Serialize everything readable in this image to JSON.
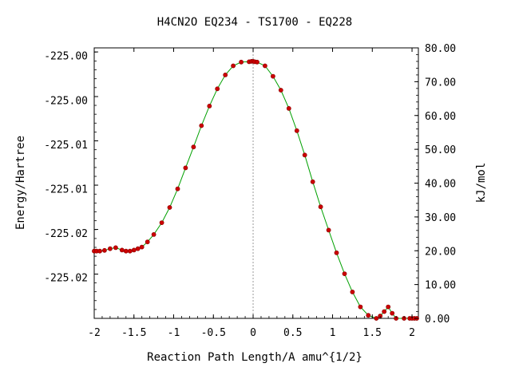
{
  "chart_data": {
    "type": "line",
    "title": "H4CN2O   EQ234 - TS1700 - EQ228",
    "xlabel": "Reaction Path Length/A amu^{1/2}",
    "ylabel_left": "Energy/Hartree",
    "ylabel_right": "kJ/mol",
    "xlim": [
      -2.0,
      2.08
    ],
    "ylim_kj": [
      0,
      80
    ],
    "x_ticks": [
      -2,
      -1.5,
      -1,
      -0.5,
      0,
      0.5,
      1,
      1.5,
      2
    ],
    "x_tick_labels": [
      "-2",
      "-1.5",
      "-1",
      "-0.5",
      "0",
      "0.5",
      "1",
      "1.5",
      "2"
    ],
    "left_tick_values_kj": [
      0.0,
      13.1,
      26.3,
      39.4,
      52.5,
      65.6,
      78.8
    ],
    "left_tick_labels": [
      "-225.02",
      "-225.02",
      "-225.01",
      "-225.01",
      "-225.00",
      "-225.00"
    ],
    "left_tick_values_label_kj": [
      12.1,
      25.2,
      38.4,
      51.5,
      64.6,
      77.7
    ],
    "right_ticks_kj": [
      0,
      10,
      20,
      30,
      40,
      50,
      60,
      70,
      80
    ],
    "right_tick_labels": [
      "0.00",
      "10.00",
      "20.00",
      "30.00",
      "40.00",
      "50.00",
      "60.00",
      "70.00",
      "80.00"
    ],
    "ts_x": 0,
    "line_color": "#00a000",
    "marker_color": "#cc0000",
    "series": [
      {
        "x": [
          -2.0,
          -1.97,
          -1.93,
          -1.87,
          -1.8,
          -1.73,
          -1.65,
          -1.6,
          -1.55,
          -1.5,
          -1.45,
          -1.4,
          -1.33,
          -1.25,
          -1.15,
          -1.05,
          -0.95,
          -0.85,
          -0.75,
          -0.65,
          -0.55,
          -0.45,
          -0.35,
          -0.25,
          -0.15,
          -0.05,
          -0.02,
          0.0,
          0.02,
          0.05,
          0.15,
          0.25,
          0.35,
          0.45,
          0.55,
          0.65,
          0.75,
          0.85,
          0.95,
          1.05,
          1.15,
          1.25,
          1.35,
          1.45,
          1.55,
          1.6,
          1.65,
          1.7,
          1.75,
          1.8,
          1.9,
          1.97,
          2.0,
          2.03,
          2.06
        ],
        "y": [
          19.9,
          19.9,
          19.9,
          20.1,
          20.6,
          20.9,
          20.2,
          19.9,
          19.9,
          20.2,
          20.6,
          21.1,
          22.6,
          24.8,
          28.3,
          32.8,
          38.3,
          44.5,
          50.7,
          57.0,
          62.8,
          67.9,
          72.0,
          74.7,
          75.8,
          75.9,
          76.0,
          76.0,
          75.9,
          75.8,
          74.7,
          71.6,
          67.5,
          62.1,
          55.5,
          48.3,
          40.4,
          33.0,
          26.1,
          19.4,
          13.2,
          7.8,
          3.4,
          0.9,
          0.0,
          0.7,
          2.0,
          3.4,
          1.5,
          0.0,
          0.0,
          0.0,
          0.0,
          0.0,
          0.0
        ]
      }
    ]
  }
}
